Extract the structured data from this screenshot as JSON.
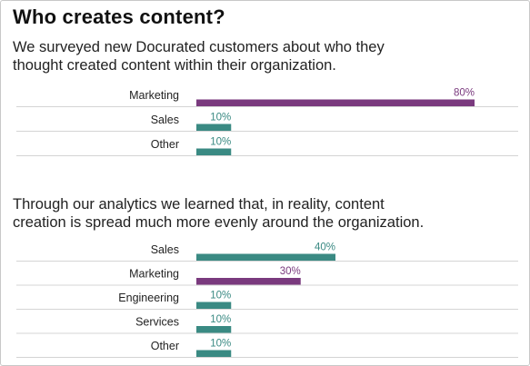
{
  "title": "Who creates content?",
  "colors": {
    "marketing": "#7a3a7e",
    "other": "#3a8a83",
    "rule": "#d4d4d4"
  },
  "sections": [
    {
      "intro_line1": "We surveyed new Docurated customers about who they",
      "intro_line2": "thought created content within their organization."
    },
    {
      "intro_line1": "Through our analytics we learned that, in reality, content",
      "intro_line2": "creation is spread much more evenly around the organization."
    }
  ],
  "chart_data": [
    {
      "type": "bar",
      "orientation": "horizontal",
      "categories": [
        "Marketing",
        "Sales",
        "Other"
      ],
      "values": [
        80,
        10,
        10
      ],
      "value_labels": [
        "80%",
        "10%",
        "10%"
      ],
      "bar_colors": [
        "#7a3a7e",
        "#3a8a83",
        "#3a8a83"
      ],
      "xlim": [
        0,
        80
      ],
      "grid": false
    },
    {
      "type": "bar",
      "orientation": "horizontal",
      "categories": [
        "Sales",
        "Marketing",
        "Engineering",
        "Services",
        "Other"
      ],
      "values": [
        40,
        30,
        10,
        10,
        10
      ],
      "value_labels": [
        "40%",
        "30%",
        "10%",
        "10%",
        "10%"
      ],
      "bar_colors": [
        "#3a8a83",
        "#7a3a7e",
        "#3a8a83",
        "#3a8a83",
        "#3a8a83"
      ],
      "xlim": [
        0,
        80
      ],
      "grid": false
    }
  ]
}
